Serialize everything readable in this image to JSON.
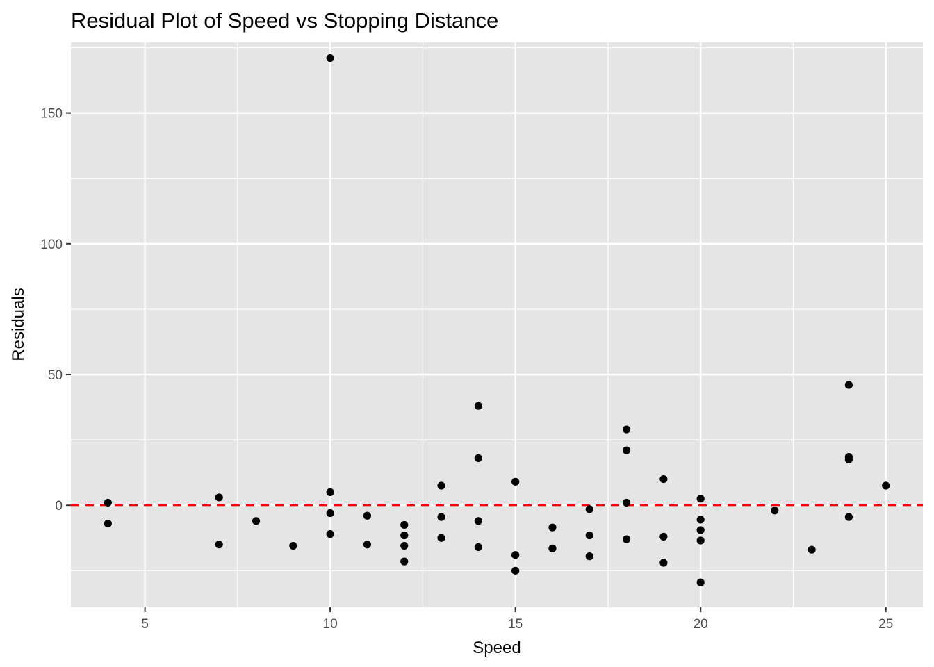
{
  "chart_data": {
    "type": "scatter",
    "title": "Residual Plot of Speed vs Stopping Distance",
    "xlabel": "Speed",
    "ylabel": "Residuals",
    "xlim": [
      3,
      26
    ],
    "ylim": [
      -39,
      177
    ],
    "x_ticks": [
      5,
      10,
      15,
      20,
      25
    ],
    "y_ticks": [
      0,
      50,
      100,
      150
    ],
    "reference_line": {
      "y": 0,
      "color": "#ff0000",
      "style": "dashed"
    },
    "colors": {
      "panel": "#e5e5e5",
      "grid": "#ffffff",
      "point": "#000000"
    },
    "points": [
      {
        "x": 4,
        "y": 1
      },
      {
        "x": 4,
        "y": -7
      },
      {
        "x": 7,
        "y": 3
      },
      {
        "x": 7,
        "y": -15
      },
      {
        "x": 8,
        "y": -6
      },
      {
        "x": 9,
        "y": -15.5
      },
      {
        "x": 10,
        "y": 171
      },
      {
        "x": 10,
        "y": 5
      },
      {
        "x": 10,
        "y": -3
      },
      {
        "x": 10,
        "y": -11
      },
      {
        "x": 11,
        "y": -4
      },
      {
        "x": 11,
        "y": -15
      },
      {
        "x": 12,
        "y": -7.5
      },
      {
        "x": 12,
        "y": -11.5
      },
      {
        "x": 12,
        "y": -15.5
      },
      {
        "x": 12,
        "y": -21.5
      },
      {
        "x": 13,
        "y": 7.5
      },
      {
        "x": 13,
        "y": -4.5
      },
      {
        "x": 13,
        "y": -12.5
      },
      {
        "x": 14,
        "y": 38
      },
      {
        "x": 14,
        "y": 18
      },
      {
        "x": 14,
        "y": -6
      },
      {
        "x": 14,
        "y": -16
      },
      {
        "x": 15,
        "y": 9
      },
      {
        "x": 15,
        "y": -19
      },
      {
        "x": 15,
        "y": -25
      },
      {
        "x": 16,
        "y": -8.5
      },
      {
        "x": 16,
        "y": -16.5
      },
      {
        "x": 17,
        "y": -1.5
      },
      {
        "x": 17,
        "y": -11.5
      },
      {
        "x": 17,
        "y": -19.5
      },
      {
        "x": 18,
        "y": 29
      },
      {
        "x": 18,
        "y": 21
      },
      {
        "x": 18,
        "y": 1
      },
      {
        "x": 18,
        "y": -13
      },
      {
        "x": 19,
        "y": 10
      },
      {
        "x": 19,
        "y": -12
      },
      {
        "x": 19,
        "y": -22
      },
      {
        "x": 20,
        "y": 2.5
      },
      {
        "x": 20,
        "y": -5.5
      },
      {
        "x": 20,
        "y": -9.5
      },
      {
        "x": 20,
        "y": -13.5
      },
      {
        "x": 20,
        "y": -29.5
      },
      {
        "x": 22,
        "y": -2
      },
      {
        "x": 23,
        "y": -17
      },
      {
        "x": 24,
        "y": 46
      },
      {
        "x": 24,
        "y": 18.5
      },
      {
        "x": 24,
        "y": 17.5
      },
      {
        "x": 24,
        "y": -4.5
      },
      {
        "x": 25,
        "y": 7.5
      }
    ]
  }
}
